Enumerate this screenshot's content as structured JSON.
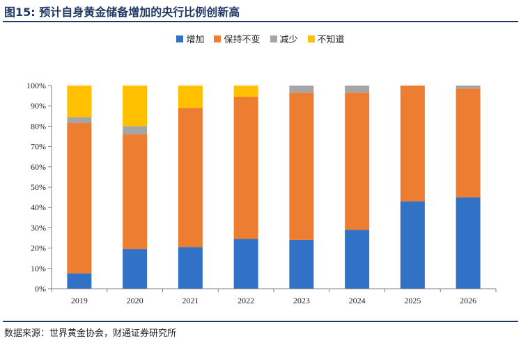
{
  "title": "图15: 预计自身黄金储备增加的央行比例创新高",
  "source": "数据来源：世界黄金协会，财通证券研究所",
  "colors": {
    "increase": "#3171c6",
    "maintain": "#ed7d31",
    "decrease": "#a5a5a5",
    "unknown": "#ffc000",
    "accent": "#1f3864"
  },
  "chart_data": {
    "type": "bar",
    "stacked": true,
    "categories": [
      "2019",
      "2020",
      "2021",
      "2022",
      "2023",
      "2024",
      "2025",
      "2026"
    ],
    "series": [
      {
        "name": "增加",
        "color_key": "increase",
        "values": [
          7.5,
          19.5,
          20.5,
          24.5,
          24,
          29,
          43,
          45
        ]
      },
      {
        "name": "保持不变",
        "color_key": "maintain",
        "values": [
          74,
          56.5,
          68.5,
          70,
          72.5,
          67.5,
          57,
          53.5
        ]
      },
      {
        "name": "减少",
        "color_key": "decrease",
        "values": [
          3,
          4,
          0,
          0,
          3.5,
          3.5,
          0,
          1.5
        ]
      },
      {
        "name": "不知道",
        "color_key": "unknown",
        "values": [
          15.5,
          20,
          11,
          5.5,
          0,
          0,
          0,
          0
        ]
      }
    ],
    "ylim": [
      0,
      100
    ],
    "yticks": [
      "0%",
      "10%",
      "20%",
      "30%",
      "40%",
      "50%",
      "60%",
      "70%",
      "80%",
      "90%",
      "100%"
    ],
    "legend_position": "top",
    "grid": false
  }
}
